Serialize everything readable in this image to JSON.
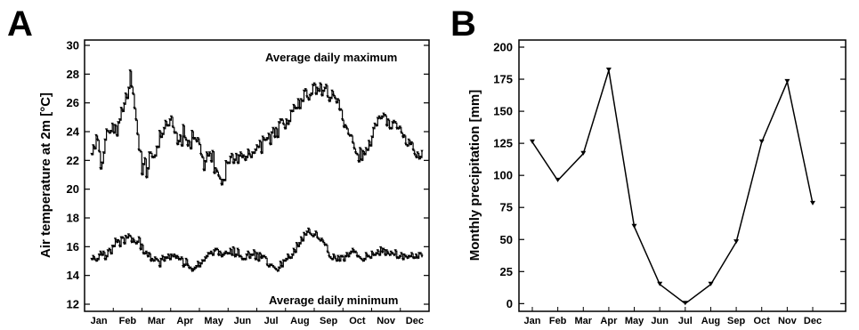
{
  "panels": {
    "a_letter": "A",
    "b_letter": "B"
  },
  "chart_data": [
    {
      "type": "line",
      "panel": "A",
      "ylabel": "Air temperature at 2m [°C]",
      "xlabel": "",
      "ylim": [
        12,
        30
      ],
      "yticks": [
        12,
        14,
        16,
        18,
        20,
        22,
        24,
        26,
        28,
        30
      ],
      "month_labels": [
        "Jan",
        "Feb",
        "Mar",
        "Apr",
        "May",
        "Jun",
        "Jul",
        "Aug",
        "Sep",
        "Oct",
        "Nov",
        "Dec"
      ],
      "grid": false,
      "annotations": {
        "max_label": "Average daily maximum",
        "min_label": "Average daily minimum"
      },
      "series": [
        {
          "values": [
            22.4,
            23.0,
            22.8,
            23.7,
            23.4,
            22.6,
            21.4,
            21.8,
            22.5,
            23.4,
            24.1,
            24.0,
            23.9,
            24.0,
            24.5,
            23.9,
            24.4,
            23.7,
            24.6,
            24.8,
            25.6,
            25.4,
            25.9,
            26.6,
            26.3,
            27.0,
            28.2,
            27.1,
            26.6,
            25.6,
            24.8,
            23.8,
            22.7,
            22.6,
            21.0,
            21.7,
            22.1,
            20.8,
            21.4,
            22.5,
            22.5,
            22.2,
            22.2,
            22.3,
            22.9,
            22.9,
            24.0,
            23.6,
            23.8,
            24.2,
            24.7,
            24.4,
            24.4,
            24.8,
            25.0,
            24.3,
            23.9,
            23.9,
            23.1,
            23.3,
            23.7,
            23.0,
            24.4,
            23.6,
            23.4,
            23.0,
            23.3,
            22.8,
            24.0,
            23.5,
            23.5,
            23.3,
            23.5,
            23.1,
            22.4,
            22.2,
            21.3,
            21.9,
            22.5,
            22.3,
            22.5,
            21.9,
            22.6,
            21.1,
            21.4,
            21.2,
            20.9,
            20.7,
            20.3,
            20.6,
            20.6,
            21.9,
            21.8,
            21.8,
            22.2,
            22.4,
            21.8,
            22.0,
            22.4,
            21.8,
            22.3,
            22.5,
            22.2,
            22.3,
            22.0,
            22.2,
            22.7,
            22.4,
            22.2,
            22.5,
            22.5,
            22.7,
            23.0,
            22.9,
            23.3,
            22.5,
            23.6,
            23.4,
            23.4,
            23.5,
            23.8,
            23.1,
            23.9,
            24.2,
            23.6,
            24.2,
            23.6,
            24.6,
            24.8,
            24.8,
            24.5,
            24.2,
            24.8,
            24.5,
            24.7,
            25.4,
            25.4,
            25.8,
            25.6,
            25.6,
            26.2,
            25.6,
            26.2,
            26.1,
            26.8,
            26.9,
            26.4,
            26.2,
            26.5,
            26.6,
            27.2,
            27.3,
            26.6,
            27.0,
            26.8,
            27.3,
            26.5,
            26.8,
            27.0,
            27.2,
            26.4,
            26.1,
            26.3,
            26.8,
            26.5,
            26.3,
            26.0,
            26.2,
            25.5,
            25.5,
            24.8,
            24.3,
            24.4,
            24.2,
            23.8,
            23.7,
            23.7,
            23.2,
            22.8,
            22.5,
            22.4,
            21.9,
            22.8,
            22.0,
            22.6,
            22.4,
            22.8,
            22.7,
            23.3,
            23.0,
            23.6,
            24.2,
            24.5,
            24.4,
            24.9,
            25.0,
            24.9,
            25.0,
            25.2,
            25.1,
            24.4,
            24.8,
            24.2,
            24.2,
            24.6,
            24.7,
            24.6,
            24.2,
            24.2,
            24.3,
            23.9,
            23.6,
            23.7,
            23.1,
            23.0,
            23.4,
            23.1,
            23.2,
            22.7,
            22.4,
            22.2,
            22.5,
            22.1,
            22.2,
            22.6
          ]
        },
        {
          "values": [
            15.1,
            15.3,
            15.1,
            15.0,
            15.1,
            15.4,
            15.6,
            15.4,
            15.6,
            15.1,
            15.3,
            15.7,
            15.8,
            15.5,
            16.0,
            16.0,
            16.5,
            16.3,
            16.4,
            16.0,
            16.6,
            16.6,
            16.2,
            16.7,
            16.6,
            16.8,
            16.7,
            16.3,
            16.5,
            16.3,
            16.2,
            16.3,
            16.6,
            15.8,
            16.1,
            15.5,
            15.5,
            15.6,
            15.3,
            15.5,
            15.0,
            15.1,
            15.0,
            15.2,
            15.1,
            15.0,
            14.6,
            15.1,
            15.3,
            15.0,
            15.2,
            15.2,
            15.4,
            15.1,
            15.4,
            15.3,
            15.4,
            15.2,
            15.3,
            15.1,
            15.1,
            15.2,
            14.6,
            14.7,
            15.1,
            14.7,
            14.5,
            14.5,
            14.3,
            14.4,
            14.5,
            14.6,
            14.9,
            14.6,
            14.8,
            15.0,
            15.0,
            15.2,
            15.3,
            15.5,
            15.5,
            15.6,
            15.4,
            15.7,
            15.8,
            15.8,
            15.4,
            15.6,
            15.3,
            15.4,
            15.5,
            15.6,
            15.5,
            15.5,
            15.8,
            15.4,
            15.9,
            15.3,
            15.4,
            15.8,
            15.3,
            15.3,
            15.1,
            15.1,
            15.1,
            15.4,
            15.6,
            15.2,
            15.4,
            15.4,
            15.7,
            15.1,
            15.5,
            15.0,
            15.5,
            15.2,
            15.3,
            15.3,
            15.2,
            14.7,
            14.6,
            14.7,
            14.7,
            14.6,
            14.5,
            14.4,
            14.3,
            14.5,
            14.9,
            14.6,
            15.0,
            15.0,
            15.1,
            15.4,
            15.2,
            15.2,
            15.4,
            15.8,
            15.6,
            16.2,
            16.0,
            16.2,
            16.6,
            16.4,
            16.9,
            16.8,
            17.0,
            17.2,
            16.9,
            16.8,
            16.7,
            16.8,
            17.0,
            16.6,
            16.5,
            16.4,
            16.5,
            16.3,
            16.1,
            16.1,
            15.6,
            15.3,
            15.2,
            15.1,
            15.4,
            15.2,
            15.0,
            15.3,
            15.0,
            15.3,
            15.3,
            15.0,
            15.3,
            15.5,
            15.3,
            15.5,
            15.6,
            15.8,
            15.6,
            15.6,
            15.3,
            15.3,
            15.2,
            15.1,
            15.0,
            15.1,
            15.5,
            15.3,
            15.3,
            15.2,
            15.6,
            15.4,
            15.4,
            15.5,
            15.7,
            15.4,
            15.9,
            15.6,
            15.8,
            15.4,
            15.7,
            15.5,
            15.4,
            15.6,
            15.5,
            15.4,
            15.7,
            15.2,
            15.2,
            15.3,
            15.5,
            15.1,
            15.4,
            15.3,
            15.2,
            15.3,
            15.3,
            15.5,
            15.2,
            15.2,
            15.4,
            15.2,
            15.5,
            15.5,
            15.3
          ]
        }
      ]
    },
    {
      "type": "line",
      "panel": "B",
      "ylabel": "Monthly precipitation [mm]",
      "xlabel": "",
      "categories": [
        "Jan",
        "Feb",
        "Mar",
        "Apr",
        "May",
        "Jun",
        "Jul",
        "Aug",
        "Sep",
        "Oct",
        "Nov",
        "Dec"
      ],
      "values": [
        126,
        96,
        117,
        182,
        60,
        15,
        0,
        15,
        48,
        126,
        173,
        78
      ],
      "ylim": [
        -6,
        200
      ],
      "yticks": [
        0,
        25,
        50,
        75,
        100,
        125,
        150,
        175,
        200
      ],
      "grid": false
    }
  ]
}
